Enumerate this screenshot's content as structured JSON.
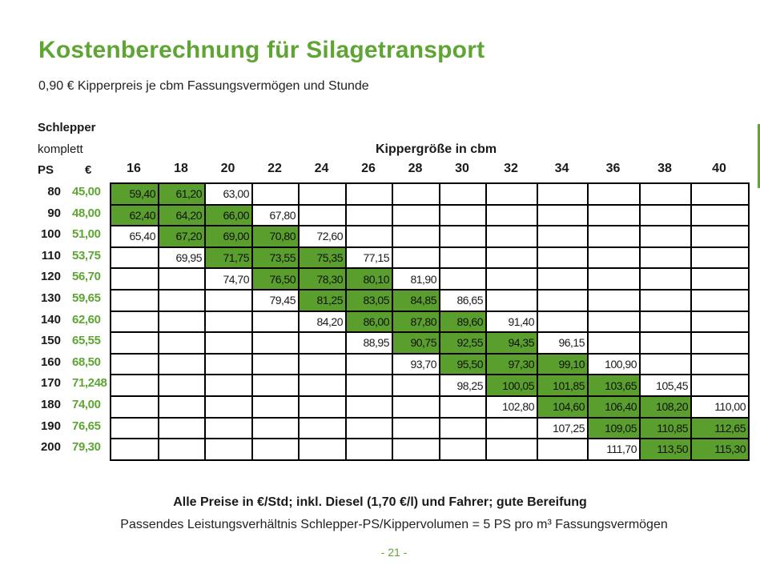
{
  "title": "Kostenberechnung für Silagetransport",
  "subtitle": "0,90 € Kipperpreis je cbm Fassungsvermögen und Stunde",
  "header": {
    "schlepper": "Schlepper",
    "komplett": "komplett",
    "ps": "PS",
    "euro": "€",
    "kipper": "Kippergröße in cbm"
  },
  "colors": {
    "accent": "#5fa534",
    "cell_highlight": "#5a9f2e"
  },
  "table": {
    "columns": [
      "16",
      "18",
      "20",
      "22",
      "24",
      "26",
      "28",
      "30",
      "32",
      "34",
      "36",
      "38",
      "40"
    ],
    "rows": [
      {
        "ps": "80",
        "eur": "45,00",
        "cells": [
          {
            "v": "59,40",
            "hl": true
          },
          {
            "v": "61,20",
            "hl": true
          },
          {
            "v": "63,00",
            "hl": false
          },
          {
            "v": "",
            "hl": false
          },
          {
            "v": "",
            "hl": false
          },
          {
            "v": "",
            "hl": false
          },
          {
            "v": "",
            "hl": false
          },
          {
            "v": "",
            "hl": false
          },
          {
            "v": "",
            "hl": false
          },
          {
            "v": "",
            "hl": false
          },
          {
            "v": "",
            "hl": false
          },
          {
            "v": "",
            "hl": false
          },
          {
            "v": "",
            "hl": false
          }
        ]
      },
      {
        "ps": "90",
        "eur": "48,00",
        "cells": [
          {
            "v": "62,40",
            "hl": true
          },
          {
            "v": "64,20",
            "hl": true
          },
          {
            "v": "66,00",
            "hl": true
          },
          {
            "v": "67,80",
            "hl": false
          },
          {
            "v": "",
            "hl": false
          },
          {
            "v": "",
            "hl": false
          },
          {
            "v": "",
            "hl": false
          },
          {
            "v": "",
            "hl": false
          },
          {
            "v": "",
            "hl": false
          },
          {
            "v": "",
            "hl": false
          },
          {
            "v": "",
            "hl": false
          },
          {
            "v": "",
            "hl": false
          },
          {
            "v": "",
            "hl": false
          }
        ]
      },
      {
        "ps": "100",
        "eur": "51,00",
        "cells": [
          {
            "v": "65,40",
            "hl": false
          },
          {
            "v": "67,20",
            "hl": true
          },
          {
            "v": "69,00",
            "hl": true
          },
          {
            "v": "70,80",
            "hl": true
          },
          {
            "v": "72,60",
            "hl": false
          },
          {
            "v": "",
            "hl": false
          },
          {
            "v": "",
            "hl": false
          },
          {
            "v": "",
            "hl": false
          },
          {
            "v": "",
            "hl": false
          },
          {
            "v": "",
            "hl": false
          },
          {
            "v": "",
            "hl": false
          },
          {
            "v": "",
            "hl": false
          },
          {
            "v": "",
            "hl": false
          }
        ]
      },
      {
        "ps": "110",
        "eur": "53,75",
        "cells": [
          {
            "v": "",
            "hl": false
          },
          {
            "v": "69,95",
            "hl": false
          },
          {
            "v": "71,75",
            "hl": true
          },
          {
            "v": "73,55",
            "hl": true
          },
          {
            "v": "75,35",
            "hl": true
          },
          {
            "v": "77,15",
            "hl": false
          },
          {
            "v": "",
            "hl": false
          },
          {
            "v": "",
            "hl": false
          },
          {
            "v": "",
            "hl": false
          },
          {
            "v": "",
            "hl": false
          },
          {
            "v": "",
            "hl": false
          },
          {
            "v": "",
            "hl": false
          },
          {
            "v": "",
            "hl": false
          }
        ]
      },
      {
        "ps": "120",
        "eur": "56,70",
        "cells": [
          {
            "v": "",
            "hl": false
          },
          {
            "v": "",
            "hl": false
          },
          {
            "v": "74,70",
            "hl": false
          },
          {
            "v": "76,50",
            "hl": true
          },
          {
            "v": "78,30",
            "hl": true
          },
          {
            "v": "80,10",
            "hl": true
          },
          {
            "v": "81,90",
            "hl": false
          },
          {
            "v": "",
            "hl": false
          },
          {
            "v": "",
            "hl": false
          },
          {
            "v": "",
            "hl": false
          },
          {
            "v": "",
            "hl": false
          },
          {
            "v": "",
            "hl": false
          },
          {
            "v": "",
            "hl": false
          }
        ]
      },
      {
        "ps": "130",
        "eur": "59,65",
        "cells": [
          {
            "v": "",
            "hl": false
          },
          {
            "v": "",
            "hl": false
          },
          {
            "v": "",
            "hl": false
          },
          {
            "v": "79,45",
            "hl": false
          },
          {
            "v": "81,25",
            "hl": true
          },
          {
            "v": "83,05",
            "hl": true
          },
          {
            "v": "84,85",
            "hl": true
          },
          {
            "v": "86,65",
            "hl": false
          },
          {
            "v": "",
            "hl": false
          },
          {
            "v": "",
            "hl": false
          },
          {
            "v": "",
            "hl": false
          },
          {
            "v": "",
            "hl": false
          },
          {
            "v": "",
            "hl": false
          }
        ]
      },
      {
        "ps": "140",
        "eur": "62,60",
        "cells": [
          {
            "v": "",
            "hl": false
          },
          {
            "v": "",
            "hl": false
          },
          {
            "v": "",
            "hl": false
          },
          {
            "v": "",
            "hl": false
          },
          {
            "v": "84,20",
            "hl": false
          },
          {
            "v": "86,00",
            "hl": true
          },
          {
            "v": "87,80",
            "hl": true
          },
          {
            "v": "89,60",
            "hl": true
          },
          {
            "v": "91,40",
            "hl": false
          },
          {
            "v": "",
            "hl": false
          },
          {
            "v": "",
            "hl": false
          },
          {
            "v": "",
            "hl": false
          },
          {
            "v": "",
            "hl": false
          }
        ]
      },
      {
        "ps": "150",
        "eur": "65,55",
        "cells": [
          {
            "v": "",
            "hl": false
          },
          {
            "v": "",
            "hl": false
          },
          {
            "v": "",
            "hl": false
          },
          {
            "v": "",
            "hl": false
          },
          {
            "v": "",
            "hl": false
          },
          {
            "v": "88,95",
            "hl": false
          },
          {
            "v": "90,75",
            "hl": true
          },
          {
            "v": "92,55",
            "hl": true
          },
          {
            "v": "94,35",
            "hl": true
          },
          {
            "v": "96,15",
            "hl": false
          },
          {
            "v": "",
            "hl": false
          },
          {
            "v": "",
            "hl": false
          },
          {
            "v": "",
            "hl": false
          }
        ]
      },
      {
        "ps": "160",
        "eur": "68,50",
        "cells": [
          {
            "v": "",
            "hl": false
          },
          {
            "v": "",
            "hl": false
          },
          {
            "v": "",
            "hl": false
          },
          {
            "v": "",
            "hl": false
          },
          {
            "v": "",
            "hl": false
          },
          {
            "v": "",
            "hl": false
          },
          {
            "v": "93,70",
            "hl": false
          },
          {
            "v": "95,50",
            "hl": true
          },
          {
            "v": "97,30",
            "hl": true
          },
          {
            "v": "99,10",
            "hl": true
          },
          {
            "v": "100,90",
            "hl": false
          },
          {
            "v": "",
            "hl": false
          },
          {
            "v": "",
            "hl": false
          }
        ]
      },
      {
        "ps": "170",
        "eur": "71,248",
        "cells": [
          {
            "v": "",
            "hl": false
          },
          {
            "v": "",
            "hl": false
          },
          {
            "v": "",
            "hl": false
          },
          {
            "v": "",
            "hl": false
          },
          {
            "v": "",
            "hl": false
          },
          {
            "v": "",
            "hl": false
          },
          {
            "v": "",
            "hl": false
          },
          {
            "v": "98,25",
            "hl": false
          },
          {
            "v": "100,05",
            "hl": true
          },
          {
            "v": "101,85",
            "hl": true
          },
          {
            "v": "103,65",
            "hl": true
          },
          {
            "v": "105,45",
            "hl": false
          },
          {
            "v": "",
            "hl": false
          }
        ]
      },
      {
        "ps": "180",
        "eur": "74,00",
        "cells": [
          {
            "v": "",
            "hl": false
          },
          {
            "v": "",
            "hl": false
          },
          {
            "v": "",
            "hl": false
          },
          {
            "v": "",
            "hl": false
          },
          {
            "v": "",
            "hl": false
          },
          {
            "v": "",
            "hl": false
          },
          {
            "v": "",
            "hl": false
          },
          {
            "v": "",
            "hl": false
          },
          {
            "v": "102,80",
            "hl": false
          },
          {
            "v": "104,60",
            "hl": true
          },
          {
            "v": "106,40",
            "hl": true
          },
          {
            "v": "108,20",
            "hl": true
          },
          {
            "v": "110,00",
            "hl": false
          }
        ]
      },
      {
        "ps": "190",
        "eur": "76,65",
        "cells": [
          {
            "v": "",
            "hl": false
          },
          {
            "v": "",
            "hl": false
          },
          {
            "v": "",
            "hl": false
          },
          {
            "v": "",
            "hl": false
          },
          {
            "v": "",
            "hl": false
          },
          {
            "v": "",
            "hl": false
          },
          {
            "v": "",
            "hl": false
          },
          {
            "v": "",
            "hl": false
          },
          {
            "v": "",
            "hl": false
          },
          {
            "v": "107,25",
            "hl": false
          },
          {
            "v": "109,05",
            "hl": true
          },
          {
            "v": "110,85",
            "hl": true
          },
          {
            "v": "112,65",
            "hl": true
          }
        ]
      },
      {
        "ps": "200",
        "eur": "79,30",
        "cells": [
          {
            "v": "",
            "hl": false
          },
          {
            "v": "",
            "hl": false
          },
          {
            "v": "",
            "hl": false
          },
          {
            "v": "",
            "hl": false
          },
          {
            "v": "",
            "hl": false
          },
          {
            "v": "",
            "hl": false
          },
          {
            "v": "",
            "hl": false
          },
          {
            "v": "",
            "hl": false
          },
          {
            "v": "",
            "hl": false
          },
          {
            "v": "",
            "hl": false
          },
          {
            "v": "111,70",
            "hl": false
          },
          {
            "v": "113,50",
            "hl": true
          },
          {
            "v": "115,30",
            "hl": true
          }
        ]
      }
    ]
  },
  "footer": {
    "note_bold": "Alle Preise in €/Std; inkl. Diesel (1,70 €/l) und Fahrer; gute Bereifung",
    "note": "Passendes Leistungsverhältnis Schlepper-PS/Kippervolumen = 5 PS pro m³ Fassungsvermögen",
    "page": "- 21 -"
  }
}
